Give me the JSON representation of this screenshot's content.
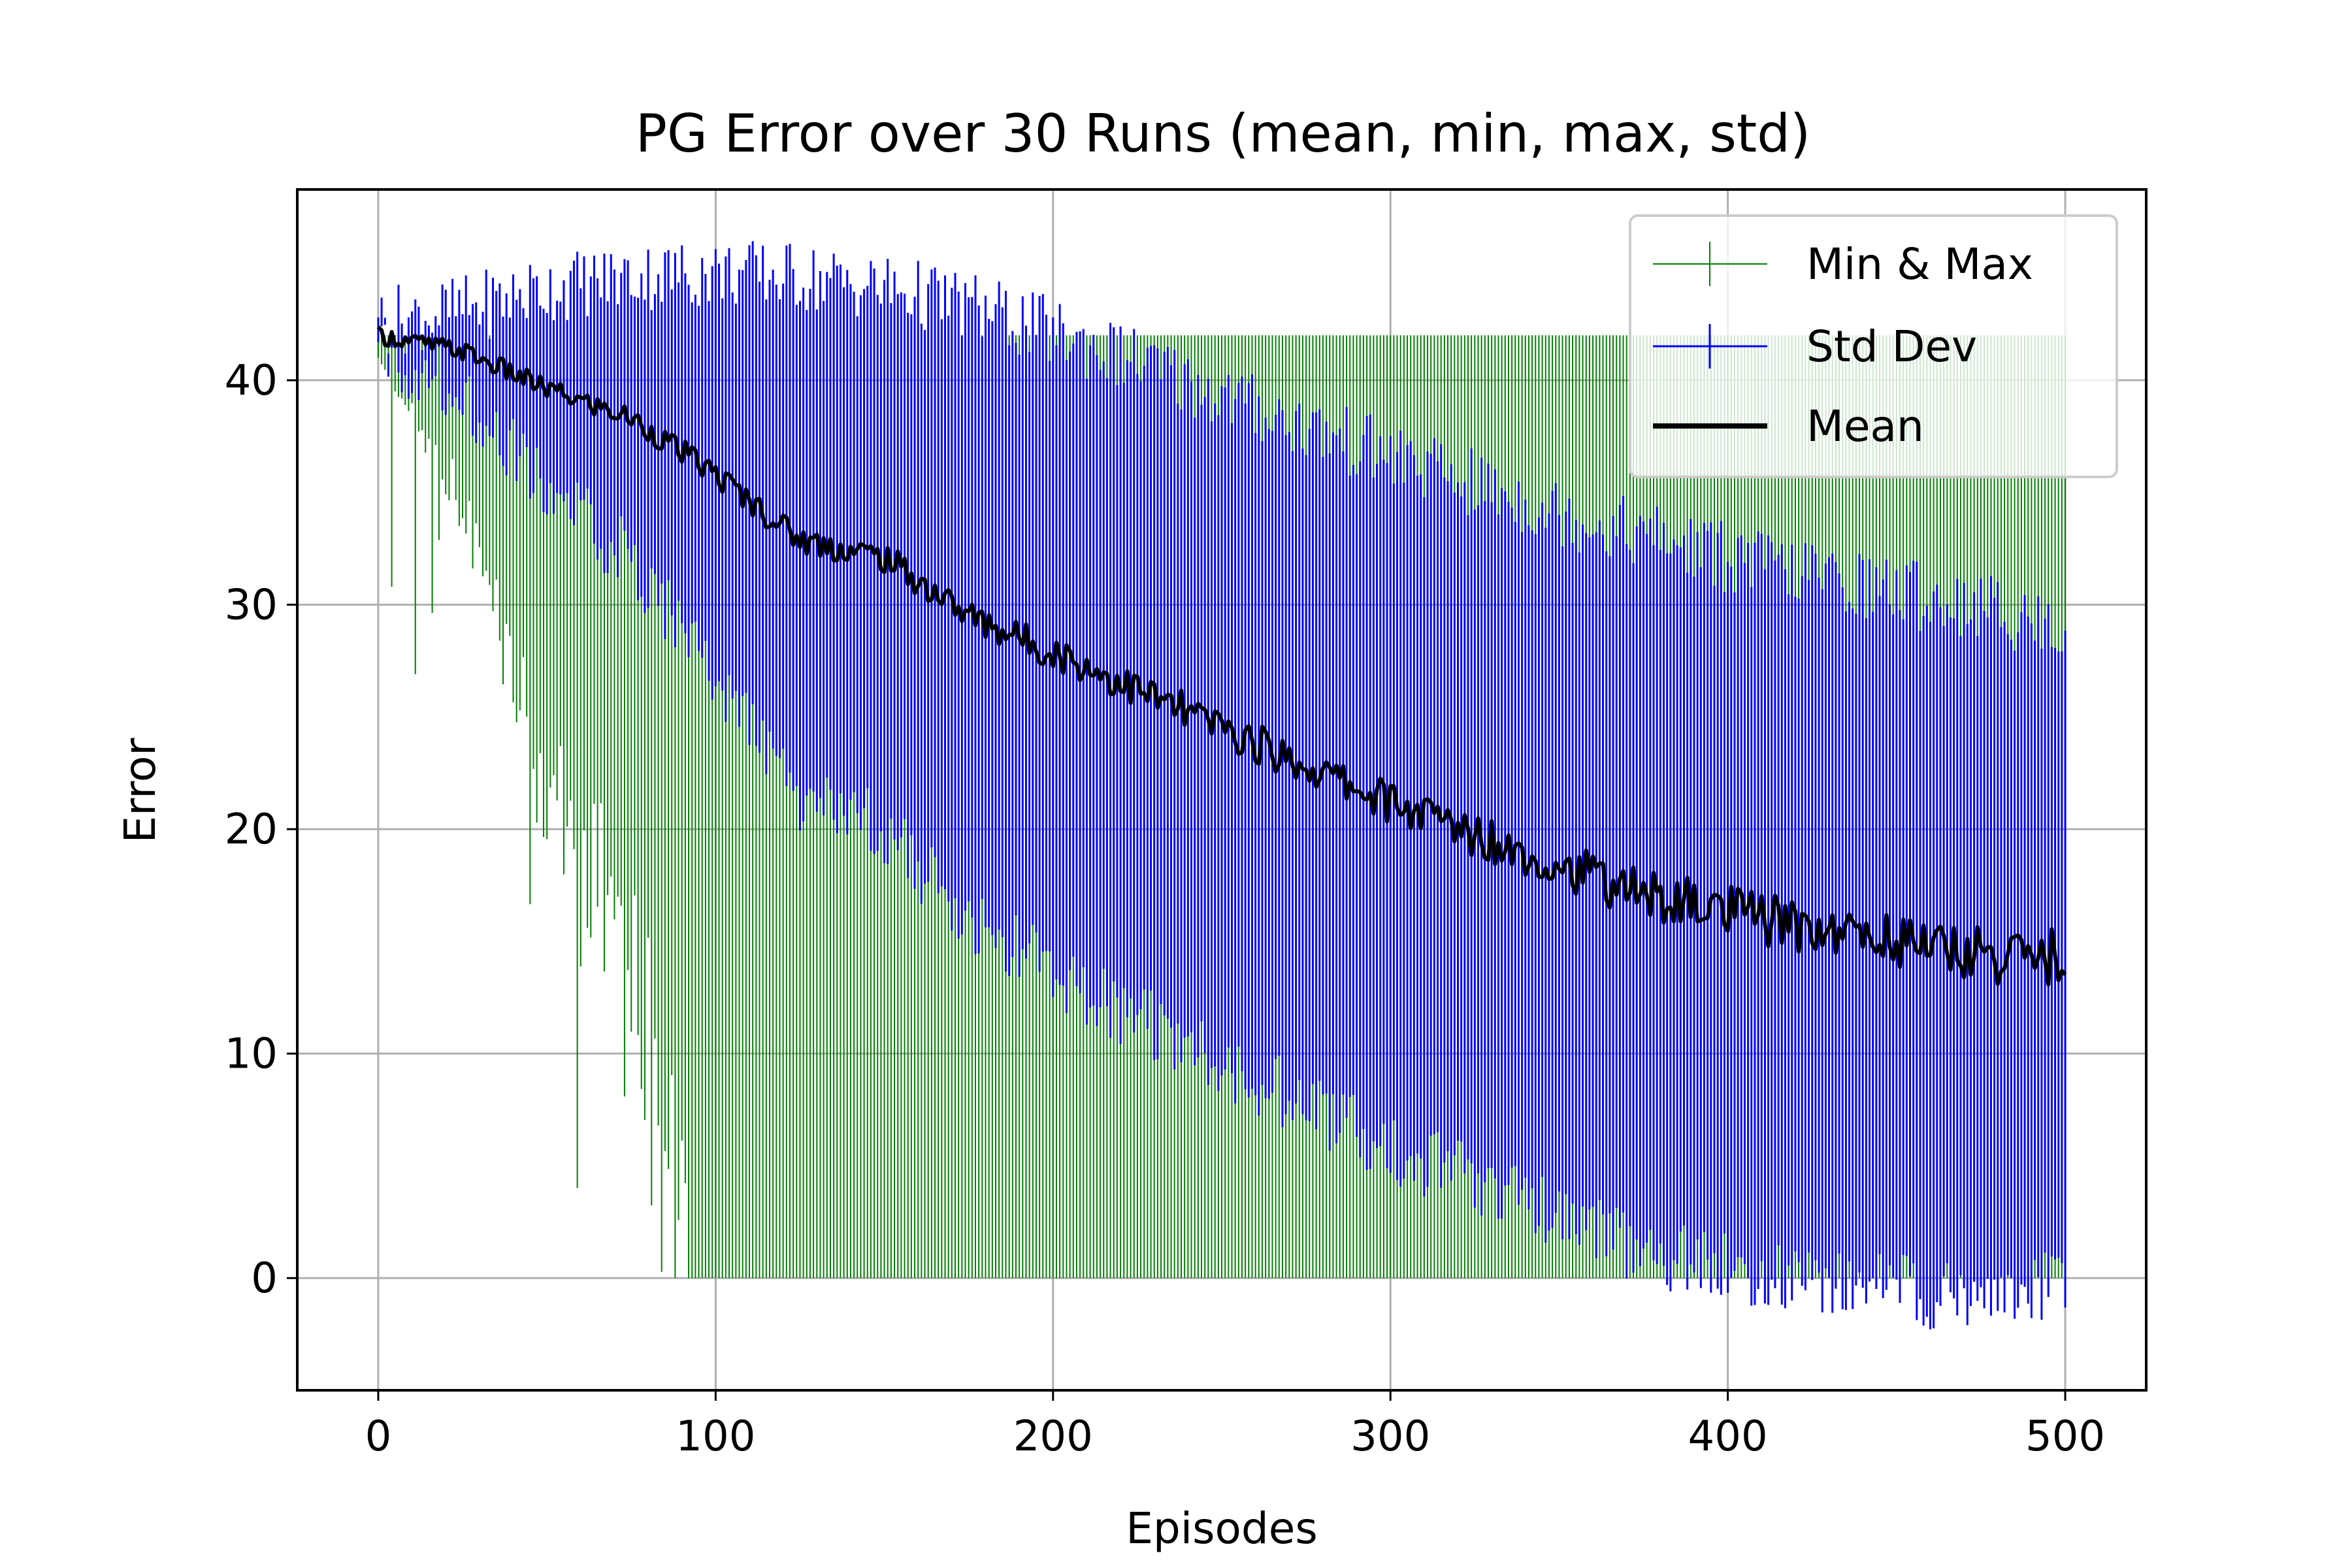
{
  "chart_data": {
    "type": "line",
    "title": "PG Error over 30 Runs (mean, min, max, std)",
    "xlabel": "Episodes",
    "ylabel": "Error",
    "xlim": [
      -24,
      524
    ],
    "ylim": [
      -5,
      48.5
    ],
    "xticks": [
      0,
      100,
      200,
      300,
      400,
      500
    ],
    "yticks": [
      0,
      10,
      20,
      30,
      40
    ],
    "grid": true,
    "legend_position": "top-right",
    "colors": {
      "min_max": "#008000",
      "std": "#0000ff",
      "mean": "#000000"
    },
    "legend": [
      {
        "key": "min_max",
        "label": "Min & Max",
        "style": "errorbar"
      },
      {
        "key": "std",
        "label": "Std Dev",
        "style": "errorbar"
      },
      {
        "key": "mean",
        "label": "Mean",
        "style": "line"
      }
    ],
    "series": {
      "x": [
        0,
        25,
        50,
        75,
        100,
        125,
        150,
        175,
        200,
        225,
        250,
        275,
        300,
        325,
        350,
        375,
        400,
        425,
        450,
        475,
        500
      ],
      "mean": [
        42,
        41.3,
        39.6,
        38.3,
        35.8,
        32.9,
        32.1,
        29.5,
        27.9,
        26.2,
        24.5,
        22.8,
        21.2,
        19.8,
        18.4,
        17.1,
        16.3,
        15.6,
        15.1,
        14.4,
        14.3
      ],
      "std_upper": [
        42.3,
        42.8,
        43.8,
        44.3,
        44.5,
        44.3,
        43.8,
        43,
        41.8,
        40.5,
        39,
        37.6,
        36.3,
        35,
        33.8,
        32.8,
        31.8,
        31,
        30.3,
        29.6,
        28.5
      ],
      "std_lower": [
        41.7,
        39.8,
        35.4,
        32.3,
        27.1,
        21.5,
        20.4,
        16,
        14,
        11.9,
        10,
        8,
        6.1,
        4.6,
        3,
        1.4,
        0.8,
        0.2,
        -0.1,
        -0.8,
        0.1
      ],
      "max": [
        42,
        42,
        42,
        42,
        42,
        42,
        42,
        42,
        42,
        42,
        42,
        42,
        42,
        42,
        42,
        42,
        42,
        42,
        42,
        42,
        42
      ],
      "min": [
        41,
        36,
        25,
        20,
        0,
        0,
        0,
        0,
        0,
        0,
        0,
        0,
        0,
        0,
        0,
        0,
        0,
        0,
        0,
        0,
        0
      ]
    }
  }
}
